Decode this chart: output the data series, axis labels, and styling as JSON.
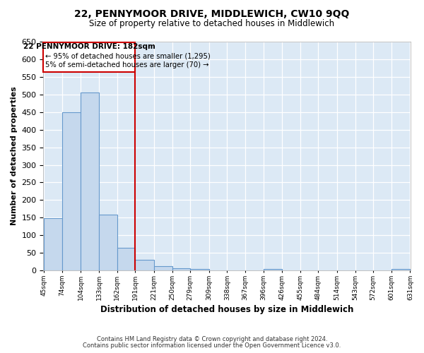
{
  "title": "22, PENNYMOOR DRIVE, MIDDLEWICH, CW10 9QQ",
  "subtitle": "Size of property relative to detached houses in Middlewich",
  "xlabel": "Distribution of detached houses by size in Middlewich",
  "ylabel": "Number of detached properties",
  "footnote1": "Contains HM Land Registry data © Crown copyright and database right 2024.",
  "footnote2": "Contains public sector information licensed under the Open Government Licence v3.0.",
  "property_label": "22 PENNYMOOR DRIVE: 182sqm",
  "annotation_line1": "← 95% of detached houses are smaller (1,295)",
  "annotation_line2": "5% of semi-detached houses are larger (70) →",
  "vline_x": 191,
  "bar_left_edges": [
    45,
    74,
    104,
    133,
    162,
    191,
    221,
    250,
    279,
    309,
    338,
    367,
    396,
    426,
    455,
    484,
    514,
    543,
    572,
    601
  ],
  "bar_widths": [
    29,
    30,
    29,
    29,
    29,
    30,
    29,
    29,
    30,
    29,
    29,
    29,
    30,
    29,
    29,
    30,
    29,
    29,
    29,
    30
  ],
  "bar_heights": [
    148,
    450,
    505,
    158,
    65,
    30,
    13,
    7,
    5,
    0,
    0,
    0,
    5,
    0,
    0,
    0,
    0,
    0,
    0,
    5
  ],
  "tick_labels": [
    "45sqm",
    "74sqm",
    "104sqm",
    "133sqm",
    "162sqm",
    "191sqm",
    "221sqm",
    "250sqm",
    "279sqm",
    "309sqm",
    "338sqm",
    "367sqm",
    "396sqm",
    "426sqm",
    "455sqm",
    "484sqm",
    "514sqm",
    "543sqm",
    "572sqm",
    "601sqm",
    "631sqm"
  ],
  "bar_color": "#c5d8ed",
  "bar_edge_color": "#6699cc",
  "vline_color": "#cc0000",
  "annotation_box_edge": "#cc0000",
  "background_color": "#dce9f5",
  "ylim": [
    0,
    650
  ],
  "yticks": [
    0,
    50,
    100,
    150,
    200,
    250,
    300,
    350,
    400,
    450,
    500,
    550,
    600,
    650
  ],
  "xlim_left": 44,
  "xlim_right": 632
}
